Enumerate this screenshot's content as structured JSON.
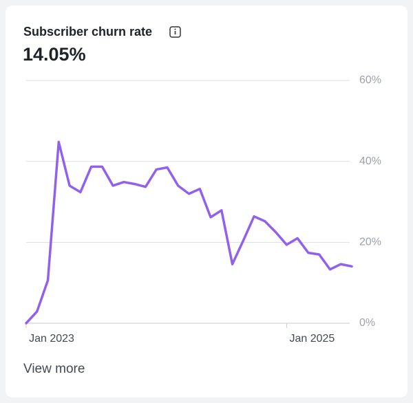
{
  "chart_data": {
    "type": "line",
    "title": "Subscriber churn rate",
    "subtitle": "14.05%",
    "categories": [
      "Jan 2023",
      null,
      null,
      null,
      null,
      null,
      null,
      null,
      null,
      null,
      null,
      null,
      null,
      null,
      null,
      null,
      null,
      null,
      null,
      null,
      null,
      null,
      null,
      null,
      "Jan 2025",
      null,
      null,
      null,
      null,
      null,
      null
    ],
    "series": [
      {
        "name": "Subscriber churn rate",
        "color": "#9161ee",
        "values": [
          0,
          2.9,
          10.6,
          44.8,
          34,
          32.4,
          38.7,
          38.7,
          34,
          34.9,
          34.4,
          33.7,
          38,
          38.5,
          34,
          32,
          33.2,
          26.2,
          27.9,
          14.6,
          20.4,
          26.4,
          25.2,
          22.5,
          19.4,
          21,
          17.4,
          17,
          13.3,
          14.6,
          14.05
        ]
      }
    ],
    "ylim": [
      0,
      60
    ],
    "yticks": [
      {
        "value": 0,
        "label": "0%"
      },
      {
        "value": 20,
        "label": "20%"
      },
      {
        "value": 40,
        "label": "40%"
      },
      {
        "value": 60,
        "label": "60%"
      }
    ],
    "grid": true
  },
  "link": "View more"
}
